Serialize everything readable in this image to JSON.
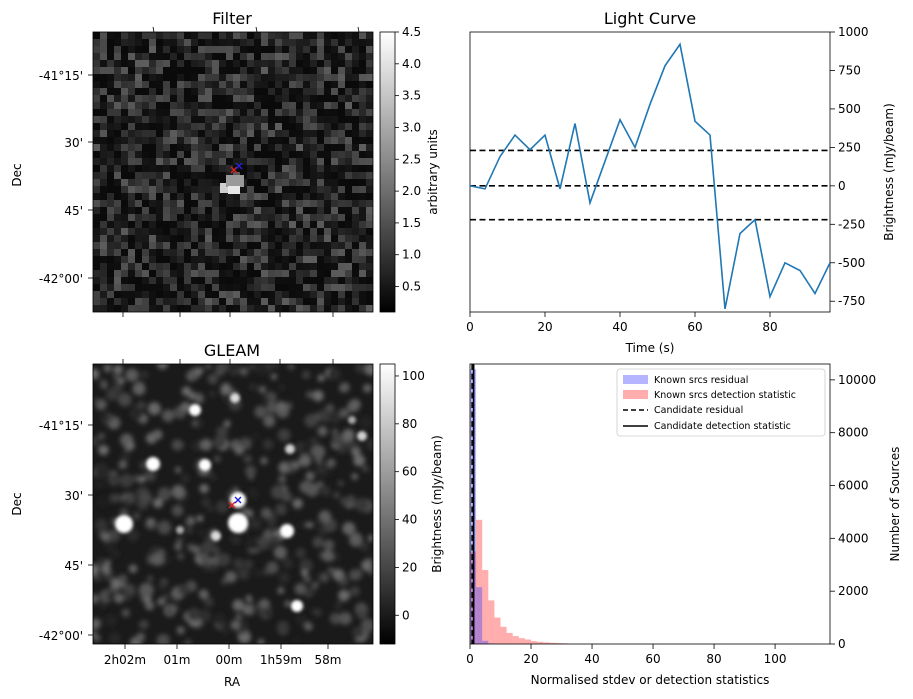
{
  "chart_data": [
    {
      "type": "heatmap",
      "title": "Filter",
      "ylabel": "Dec",
      "yticks": [
        "-41°15'",
        "30'",
        "45'",
        "-42°00'"
      ],
      "colorbar": {
        "label": "arbitrary units",
        "ticks": [
          "0.5",
          "1.0",
          "1.5",
          "2.0",
          "2.5",
          "3.0",
          "3.5",
          "4.0",
          "4.5"
        ],
        "range": [
          0.1,
          4.5
        ]
      },
      "cmap": "gray",
      "markers": [
        {
          "symbol": "x",
          "color": "#dd2222"
        },
        {
          "symbol": "x",
          "color": "#2222dd"
        }
      ]
    },
    {
      "type": "line",
      "title": "Light Curve",
      "xlabel": "Time (s)",
      "ylabel": "Brightness (mJy/beam)",
      "xlim": [
        0,
        96
      ],
      "ylim": [
        -820,
        1000
      ],
      "xticks": [
        "0",
        "20",
        "40",
        "60",
        "80"
      ],
      "yticks": [
        "-750",
        "-500",
        "-250",
        "0",
        "250",
        "500",
        "750",
        "1000"
      ],
      "series": [
        {
          "color": "#1f77b4",
          "x": [
            0,
            4,
            8,
            12,
            16,
            20,
            24,
            28,
            32,
            36,
            40,
            44,
            48,
            52,
            56,
            60,
            64,
            68,
            72,
            76,
            80,
            84,
            88,
            92,
            96
          ],
          "y": [
            0,
            -20,
            190,
            330,
            235,
            330,
            -20,
            405,
            -110,
            160,
            430,
            250,
            530,
            780,
            920,
            420,
            330,
            -800,
            -310,
            -220,
            -720,
            -500,
            -550,
            -700,
            -500
          ]
        }
      ],
      "hlines": [
        230,
        0,
        -220
      ]
    },
    {
      "type": "heatmap",
      "title": "GLEAM",
      "xlabel": "RA",
      "ylabel": "Dec",
      "xticks": [
        "2h02m",
        "01m",
        "00m",
        "1h59m",
        "58m"
      ],
      "yticks": [
        "-41°15'",
        "30'",
        "45'",
        "-42°00'"
      ],
      "colorbar": {
        "label": "Brightness (mJy/beam)",
        "ticks": [
          "0",
          "20",
          "40",
          "60",
          "80",
          "100"
        ],
        "range": [
          -12,
          105
        ]
      },
      "cmap": "gray",
      "markers": [
        {
          "symbol": "x",
          "color": "#dd2222"
        },
        {
          "symbol": "x",
          "color": "#2222dd"
        }
      ]
    },
    {
      "type": "bar",
      "xlabel": "Normalised stdev or detection statistics",
      "ylabel": "Number of Sources",
      "xlim": [
        0,
        118
      ],
      "ylim": [
        0,
        10600
      ],
      "xticks": [
        "0",
        "20",
        "40",
        "60",
        "80",
        "100"
      ],
      "yticks": [
        "0",
        "2000",
        "4000",
        "6000",
        "8000",
        "10000"
      ],
      "bin_width": 2,
      "series": [
        {
          "name": "Known srcs residual",
          "color": "#4444ff",
          "bin_starts": [
            0,
            2,
            4,
            6
          ],
          "values": [
            10400,
            2150,
            120,
            20
          ]
        },
        {
          "name": "Known srcs detection statistic",
          "color": "#ff3333",
          "bin_starts": [
            0,
            2,
            4,
            6,
            8,
            10,
            12,
            14,
            16,
            18,
            20,
            22,
            24,
            26,
            28,
            30,
            40,
            60,
            80,
            110
          ],
          "values": [
            3500,
            4700,
            2800,
            1650,
            1000,
            650,
            420,
            300,
            220,
            170,
            110,
            80,
            60,
            45,
            35,
            25,
            15,
            10,
            10,
            5
          ]
        }
      ],
      "vlines": [
        {
          "name": "Candidate residual",
          "x": 0.7,
          "style": "dashed"
        },
        {
          "name": "Candidate detection statistic",
          "x": 1.2,
          "style": "solid"
        }
      ],
      "legend": "top-right"
    }
  ]
}
